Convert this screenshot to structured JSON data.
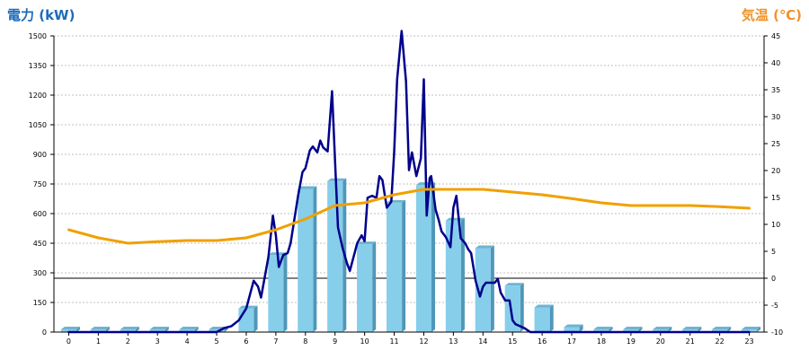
{
  "chart_data": {
    "type": "bar",
    "title_left": "電力 (kW)",
    "title_right": "気温 (℃)",
    "categories": [
      "0",
      "1",
      "2",
      "3",
      "4",
      "5",
      "6",
      "7",
      "8",
      "9",
      "10",
      "11",
      "12",
      "13",
      "14",
      "15",
      "16",
      "17",
      "18",
      "19",
      "20",
      "21",
      "22",
      "23"
    ],
    "y_left": {
      "ylim": [
        0,
        1500
      ],
      "ticks": [
        "0",
        "150",
        "300",
        "450",
        "600",
        "750",
        "900",
        "1050",
        "1200",
        "1350",
        "1500"
      ]
    },
    "y_right": {
      "ylim": [
        -10,
        45
      ],
      "ticks": [
        "-10",
        "-5",
        "0",
        "5",
        "10",
        "15",
        "20",
        "25",
        "30",
        "35",
        "40",
        "45"
      ]
    },
    "grid": true,
    "series": [
      {
        "kind": "bar",
        "axis": "left",
        "color": "#87ceeb",
        "values": [
          0,
          0,
          0,
          0,
          0,
          0,
          120,
          390,
          725,
          765,
          445,
          655,
          745,
          565,
          425,
          235,
          125,
          25,
          0,
          0,
          0,
          0,
          0,
          0
        ]
      },
      {
        "kind": "line",
        "axis": "left",
        "color": "#00008b",
        "x": [
          0,
          1,
          2,
          3,
          4,
          5,
          5.25,
          5.5,
          5.75,
          6,
          6.25,
          6.4,
          6.5,
          6.75,
          6.9,
          7,
          7.1,
          7.25,
          7.4,
          7.5,
          7.75,
          7.9,
          8,
          8.15,
          8.25,
          8.4,
          8.5,
          8.6,
          8.75,
          8.9,
          9,
          9.1,
          9.25,
          9.4,
          9.5,
          9.75,
          9.9,
          10,
          10.1,
          10.25,
          10.4,
          10.5,
          10.6,
          10.75,
          10.9,
          11,
          11.1,
          11.25,
          11.4,
          11.5,
          11.6,
          11.75,
          11.9,
          12,
          12.1,
          12.2,
          12.25,
          12.4,
          12.5,
          12.6,
          12.75,
          12.9,
          13,
          13.1,
          13.25,
          13.4,
          13.5,
          13.6,
          13.75,
          13.9,
          14,
          14.1,
          14.25,
          14.4,
          14.5,
          14.6,
          14.75,
          14.9,
          15,
          15.1,
          15.25,
          15.4,
          15.5,
          15.6,
          15.75,
          15.9,
          16,
          16.25,
          16.5,
          16.75,
          17,
          17.5,
          18,
          19,
          20,
          21,
          22,
          23
        ],
        "values": [
          0,
          0,
          0,
          0,
          0,
          0,
          20,
          30,
          60,
          120,
          260,
          230,
          175,
          380,
          590,
          490,
          330,
          390,
          400,
          450,
          690,
          810,
          830,
          920,
          940,
          910,
          970,
          935,
          915,
          1220,
          870,
          530,
          430,
          350,
          310,
          450,
          490,
          460,
          680,
          690,
          680,
          790,
          770,
          630,
          660,
          910,
          1280,
          1525,
          1270,
          820,
          910,
          790,
          880,
          1280,
          590,
          780,
          790,
          620,
          570,
          510,
          480,
          430,
          630,
          690,
          475,
          450,
          420,
          400,
          260,
          180,
          230,
          250,
          250,
          250,
          270,
          200,
          160,
          160,
          60,
          40,
          30,
          20,
          10,
          0,
          0,
          0,
          0,
          0,
          0,
          0,
          0,
          0,
          0,
          0,
          0,
          0,
          0,
          0
        ]
      },
      {
        "kind": "line",
        "axis": "right",
        "color": "#f0a000",
        "x": [
          0,
          1,
          2,
          3,
          4,
          5,
          6,
          7,
          8,
          9,
          10,
          11,
          12,
          13,
          14,
          15,
          16,
          17,
          18,
          19,
          20,
          21,
          22,
          23
        ],
        "values": [
          9,
          7.5,
          6.5,
          6.8,
          7,
          7,
          7.5,
          9,
          11,
          13.5,
          14,
          15.5,
          16.5,
          16.5,
          16.5,
          16,
          15.5,
          14.8,
          14,
          13.5,
          13.5,
          13.5,
          13.3,
          13
        ]
      }
    ]
  }
}
